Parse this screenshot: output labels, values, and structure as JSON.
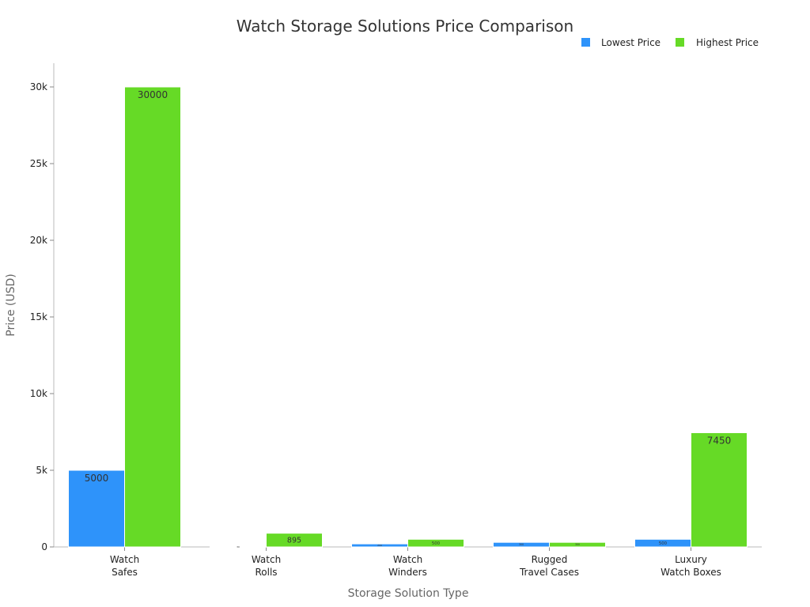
{
  "chart_data": {
    "type": "bar",
    "title": "Watch Storage Solutions Price Comparison",
    "xlabel": "Storage Solution Type",
    "ylabel": "Price (USD)",
    "ylim": [
      0,
      31500
    ],
    "yticks": [
      0,
      5000,
      10000,
      15000,
      20000,
      25000,
      30000
    ],
    "ytick_labels": [
      "0",
      "5k",
      "10k",
      "15k",
      "20k",
      "25k",
      "30k"
    ],
    "categories": [
      [
        "Watch",
        "Safes"
      ],
      [
        "Watch",
        "Rolls"
      ],
      [
        "Watch",
        "Winders"
      ],
      [
        "Rugged",
        "Travel Cases"
      ],
      [
        "Luxury",
        "Watch Boxes"
      ]
    ],
    "series": [
      {
        "name": "Lowest Price",
        "color": "#2E93FA",
        "values": [
          5000,
          30,
          200,
          300,
          500
        ],
        "labels": [
          "5000",
          "30",
          "200",
          "300",
          "500"
        ]
      },
      {
        "name": "Highest Price",
        "color": "#66DA26",
        "values": [
          30000,
          895,
          500,
          300,
          7450
        ],
        "labels": [
          "30000",
          "895",
          "500",
          "300",
          "7450"
        ]
      }
    ],
    "legend_position": "top-right",
    "grid": false
  }
}
